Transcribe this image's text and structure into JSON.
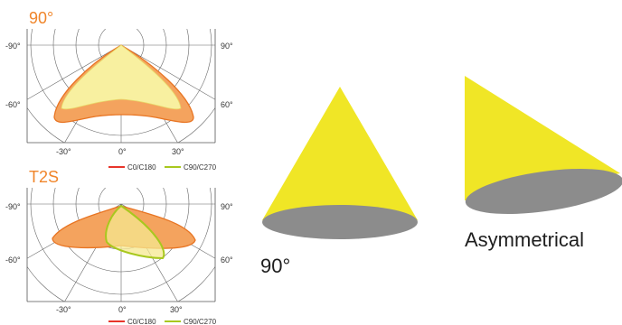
{
  "diagrams": [
    {
      "title": "90°",
      "title_color": "#f0852a",
      "tick_labels": {
        "left_top": "-90°",
        "left_mid": "-60°",
        "right_top": "90°",
        "right_mid": "60°",
        "bottom_left": "-30°",
        "bottom_center": "0°",
        "bottom_right": "30°"
      },
      "legend": [
        {
          "label": "C0/C180",
          "color": "#e8352a"
        },
        {
          "label": "C90/C270",
          "color": "#a8c81e"
        }
      ]
    },
    {
      "title": "T2S",
      "title_color": "#f0852a",
      "tick_labels": {
        "left_top": "-90°",
        "left_mid": "-60°",
        "right_top": "90°",
        "right_mid": "60°",
        "bottom_left": "-30°",
        "bottom_center": "0°",
        "bottom_right": "30°"
      },
      "legend": [
        {
          "label": "C0/C180",
          "color": "#e8352a"
        },
        {
          "label": "C90/C270",
          "color": "#a8c81e"
        }
      ]
    }
  ],
  "cones": [
    {
      "label": "90°",
      "type": "symmetric"
    },
    {
      "label": "Asymmetrical",
      "type": "asymmetric"
    }
  ],
  "colors": {
    "cone_fill": "#f0e626",
    "cone_base": "#8c8c8c",
    "curve_orange_fill": "#f4a35e",
    "curve_orange_stroke": "#e87422",
    "curve_yellow_fill": "#f8f0a0",
    "curve_green_stroke": "#a8c81e",
    "grid": "#555555"
  }
}
